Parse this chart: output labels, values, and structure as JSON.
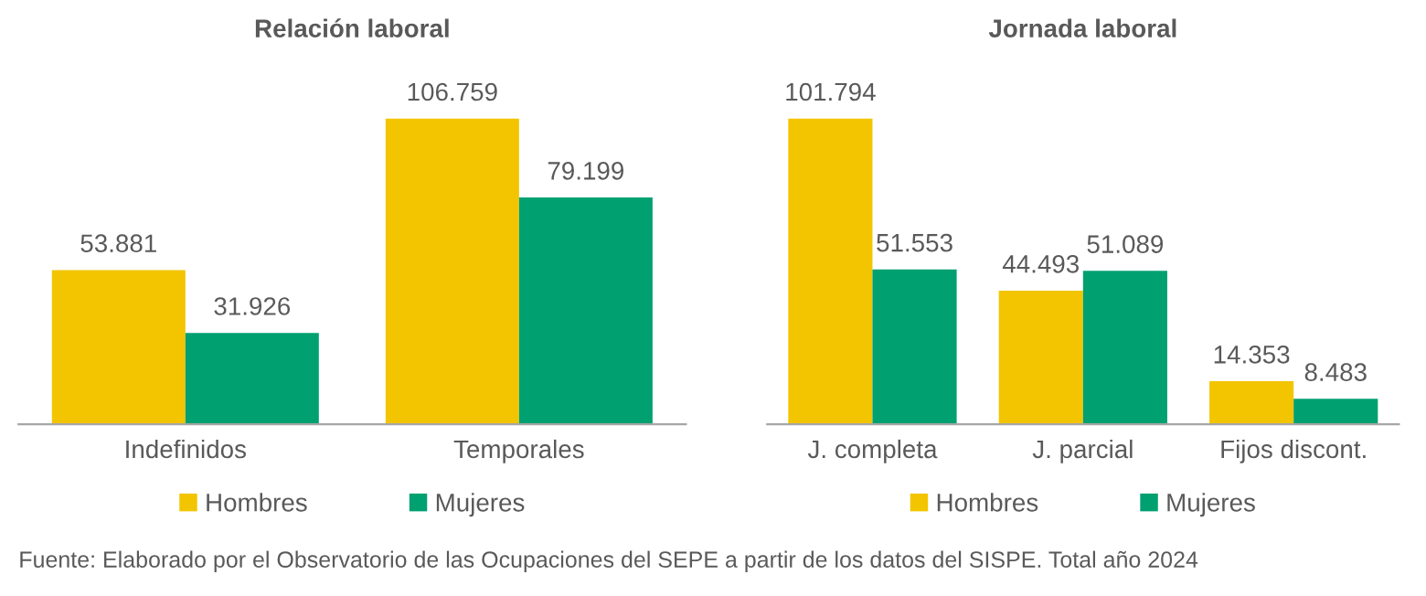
{
  "chart_data": [
    {
      "type": "bar",
      "title": "Relación laboral",
      "categories": [
        "Indefinidos",
        "Temporales"
      ],
      "series": [
        {
          "name": "Hombres",
          "color": "#f2c500",
          "values": [
            53881,
            106759
          ],
          "value_labels": [
            "53.881",
            "106.759"
          ]
        },
        {
          "name": "Mujeres",
          "color": "#00a070",
          "values": [
            31926,
            79199
          ],
          "value_labels": [
            "31.926",
            "79.199"
          ]
        }
      ],
      "legend": "bottom",
      "tick_labels": "x",
      "annotations": [
        "Fuente: Elaborado por el Observatorio de las Ocupaciones del SEPE a partir de los datos del SISPE. Total año 2024"
      ]
    },
    {
      "type": "bar",
      "title": "Jornada laboral",
      "categories": [
        "J. completa",
        "J. parcial",
        "Fijos discont."
      ],
      "series": [
        {
          "name": "Hombres",
          "color": "#f2c500",
          "values": [
            101794,
            44493,
            14353
          ],
          "value_labels": [
            "101.794",
            "44.493",
            "14.353"
          ]
        },
        {
          "name": "Mujeres",
          "color": "#00a070",
          "values": [
            51553,
            51089,
            8483
          ],
          "value_labels": [
            "51.553",
            "51.089",
            "8.483"
          ]
        }
      ],
      "legend": "bottom",
      "tick_labels": "x"
    }
  ]
}
